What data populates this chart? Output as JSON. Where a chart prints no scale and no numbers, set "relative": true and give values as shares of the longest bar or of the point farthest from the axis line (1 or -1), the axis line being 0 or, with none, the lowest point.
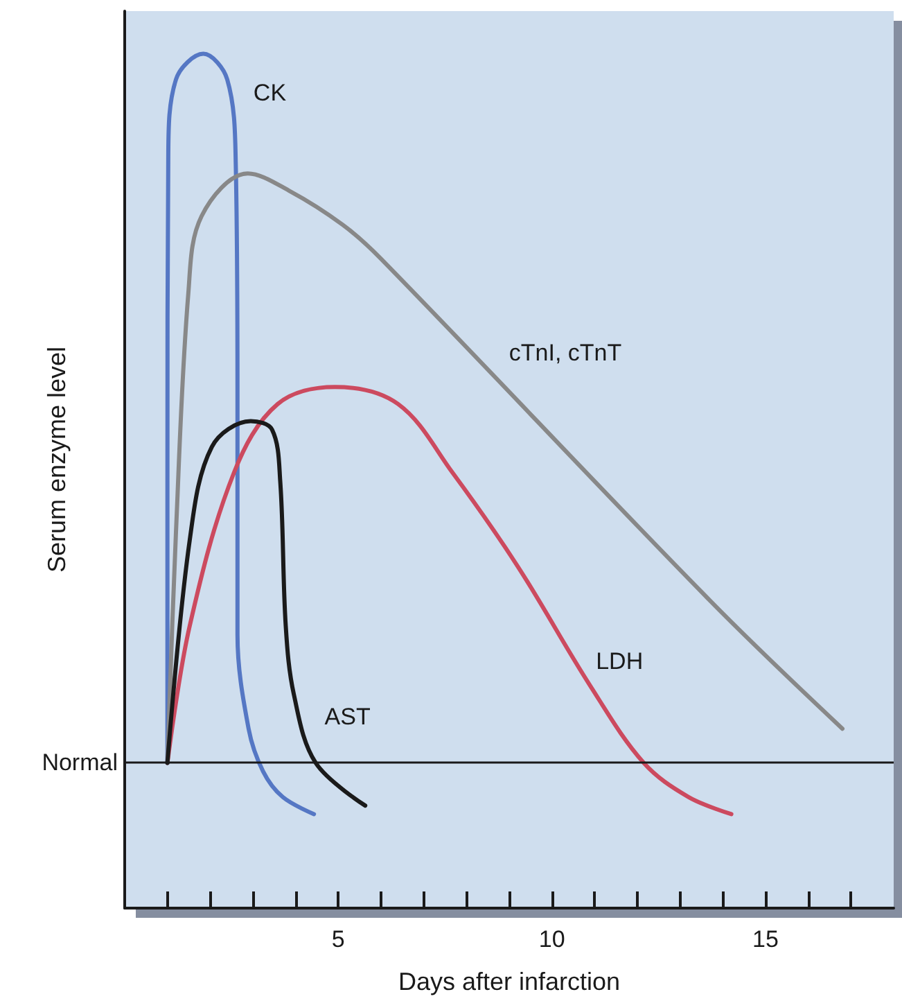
{
  "chart_data": {
    "type": "line",
    "relative": true,
    "xlabel": "Days after infarction",
    "ylabel": "Serum enzyme level",
    "xlim": [
      0,
      18
    ],
    "xticks": [
      {
        "value": 1,
        "label": null
      },
      {
        "value": 2,
        "label": null
      },
      {
        "value": 3,
        "label": null
      },
      {
        "value": 4,
        "label": null
      },
      5,
      {
        "value": 6,
        "label": null
      },
      {
        "value": 7,
        "label": null
      },
      {
        "value": 8,
        "label": null
      },
      {
        "value": 9,
        "label": null
      },
      10,
      {
        "value": 11,
        "label": null
      },
      {
        "value": 12,
        "label": null
      },
      {
        "value": 13,
        "label": null
      },
      {
        "value": 14,
        "label": null
      },
      15,
      {
        "value": 16,
        "label": null
      },
      {
        "value": 17,
        "label": null
      }
    ],
    "series": [
      {
        "name": "CK",
        "color": "#5577c4",
        "x": [
          1,
          1,
          1.02,
          1.2,
          1.84,
          2.4,
          2.6,
          2.64,
          2.64,
          2.9,
          3.24,
          3.7,
          4.43
        ],
        "values": [
          0.17,
          0.5,
          0.88,
          0.97,
          1.0,
          0.97,
          0.87,
          0.6,
          0.32,
          0.21,
          0.16,
          0.13,
          0.11
        ]
      },
      {
        "name": "cTnI, cTnT",
        "color": "#888888",
        "x": [
          1,
          1.2,
          1.49,
          1.8,
          2.88,
          3.84,
          5.1,
          6.0,
          13.7,
          16.8
        ],
        "values": [
          0.17,
          0.44,
          0.72,
          0.81,
          0.86,
          0.84,
          0.8,
          0.76,
          0.36,
          0.21
        ]
      },
      {
        "name": "LDH",
        "color": "#cc4a5f",
        "x": [
          1,
          1.52,
          2.56,
          3.58,
          4.92,
          6.4,
          7.67,
          9.2,
          10.9,
          12.15,
          13.2,
          14.2
        ],
        "values": [
          0.17,
          0.33,
          0.51,
          0.59,
          0.61,
          0.59,
          0.51,
          0.4,
          0.26,
          0.17,
          0.13,
          0.11
        ]
      },
      {
        "name": "AST",
        "color": "#1a1a1a",
        "x": [
          1,
          1.52,
          2.04,
          2.95,
          3.45,
          3.64,
          3.77,
          3.96,
          4.47,
          5.63
        ],
        "values": [
          0.17,
          0.43,
          0.54,
          0.57,
          0.56,
          0.5,
          0.33,
          0.25,
          0.17,
          0.12
        ]
      }
    ],
    "ref_lines": [
      {
        "axis": "y",
        "value": 0.17,
        "label": "Normal",
        "color": "#1a1a1a"
      }
    ],
    "grid": false,
    "legend": false,
    "marker": "none",
    "line_style": "solid"
  }
}
